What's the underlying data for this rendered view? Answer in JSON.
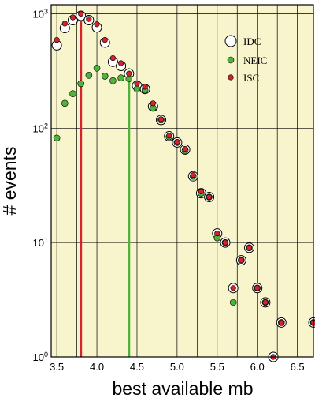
{
  "chart_data": {
    "type": "scatter",
    "xlabel": "best available mb",
    "ylabel": "# events",
    "xlim": [
      3.43,
      6.7
    ],
    "ylog": true,
    "ylim": [
      1,
      1200
    ],
    "grid": true,
    "legend_position": "top-right",
    "x_ticks": [
      "3.5",
      "4.0",
      "4.5",
      "5.0",
      "5.5",
      "6.0",
      "6.5"
    ],
    "y_ticks": [
      {
        "value": 1,
        "base": "10",
        "exp": "0"
      },
      {
        "value": 10,
        "base": "10",
        "exp": "1"
      },
      {
        "value": 100,
        "base": "10",
        "exp": "2"
      },
      {
        "value": 1000,
        "base": "10",
        "exp": "3"
      }
    ],
    "colors": {
      "background": "#f8f5cc",
      "idc": "#ffffff",
      "neic": "#4fb23a",
      "isc": "#d4232a",
      "grid": "#000000"
    },
    "reference_lines": [
      {
        "series": "ISC",
        "x": 3.8,
        "color": "#d4232a"
      },
      {
        "series": "NEIC",
        "x": 4.4,
        "color": "#4fb23a"
      }
    ],
    "series": [
      {
        "name": "IDC",
        "marker": "large-open-circle",
        "points": [
          [
            3.5,
            530
          ],
          [
            3.6,
            750
          ],
          [
            3.7,
            880
          ],
          [
            3.8,
            960
          ],
          [
            3.9,
            880
          ],
          [
            4.0,
            760
          ],
          [
            4.1,
            560
          ],
          [
            4.2,
            380
          ],
          [
            4.3,
            350
          ],
          [
            4.4,
            300
          ],
          [
            4.5,
            235
          ],
          [
            4.6,
            220
          ],
          [
            4.7,
            155
          ],
          [
            4.8,
            118
          ],
          [
            4.9,
            85
          ],
          [
            5.0,
            75
          ],
          [
            5.1,
            65
          ],
          [
            5.2,
            38
          ],
          [
            5.3,
            27
          ],
          [
            5.4,
            25
          ],
          [
            5.5,
            12
          ],
          [
            5.6,
            10
          ],
          [
            5.7,
            4
          ],
          [
            5.8,
            7
          ],
          [
            5.9,
            9
          ],
          [
            6.0,
            4
          ],
          [
            6.1,
            3
          ],
          [
            6.2,
            1
          ],
          [
            6.3,
            2
          ],
          [
            6.7,
            2
          ]
        ]
      },
      {
        "name": "NEIC",
        "marker": "small-filled-circle",
        "points": [
          [
            3.5,
            82
          ],
          [
            3.6,
            165
          ],
          [
            3.7,
            200
          ],
          [
            3.8,
            245
          ],
          [
            3.9,
            290
          ],
          [
            4.0,
            335
          ],
          [
            4.1,
            285
          ],
          [
            4.2,
            260
          ],
          [
            4.3,
            275
          ],
          [
            4.4,
            270
          ],
          [
            4.5,
            220
          ],
          [
            4.6,
            215
          ],
          [
            4.7,
            150
          ],
          [
            4.8,
            118
          ],
          [
            4.9,
            84
          ],
          [
            5.0,
            75
          ],
          [
            5.1,
            64
          ],
          [
            5.2,
            38
          ],
          [
            5.3,
            27
          ],
          [
            5.4,
            25
          ],
          [
            5.5,
            11
          ],
          [
            5.6,
            10
          ],
          [
            5.7,
            3
          ],
          [
            5.8,
            7
          ],
          [
            5.9,
            9
          ],
          [
            6.0,
            4
          ],
          [
            6.1,
            3
          ],
          [
            6.3,
            2
          ],
          [
            6.7,
            2
          ]
        ]
      },
      {
        "name": "ISC",
        "marker": "small-filled-circle",
        "points": [
          [
            3.5,
            590
          ],
          [
            3.6,
            820
          ],
          [
            3.7,
            930
          ],
          [
            3.8,
            1000
          ],
          [
            3.9,
            900
          ],
          [
            4.0,
            810
          ],
          [
            4.1,
            590
          ],
          [
            4.2,
            410
          ],
          [
            4.3,
            370
          ],
          [
            4.4,
            300
          ],
          [
            4.5,
            245
          ],
          [
            4.6,
            230
          ],
          [
            4.7,
            165
          ],
          [
            4.8,
            120
          ],
          [
            4.9,
            86
          ],
          [
            5.0,
            76
          ],
          [
            5.1,
            66
          ],
          [
            5.2,
            39
          ],
          [
            5.3,
            28
          ],
          [
            5.4,
            25
          ],
          [
            5.5,
            12
          ],
          [
            5.6,
            10
          ],
          [
            5.7,
            4
          ],
          [
            5.8,
            7
          ],
          [
            5.9,
            9
          ],
          [
            6.0,
            4
          ],
          [
            6.1,
            3
          ],
          [
            6.2,
            1
          ],
          [
            6.3,
            2
          ],
          [
            6.7,
            2
          ]
        ]
      }
    ]
  }
}
